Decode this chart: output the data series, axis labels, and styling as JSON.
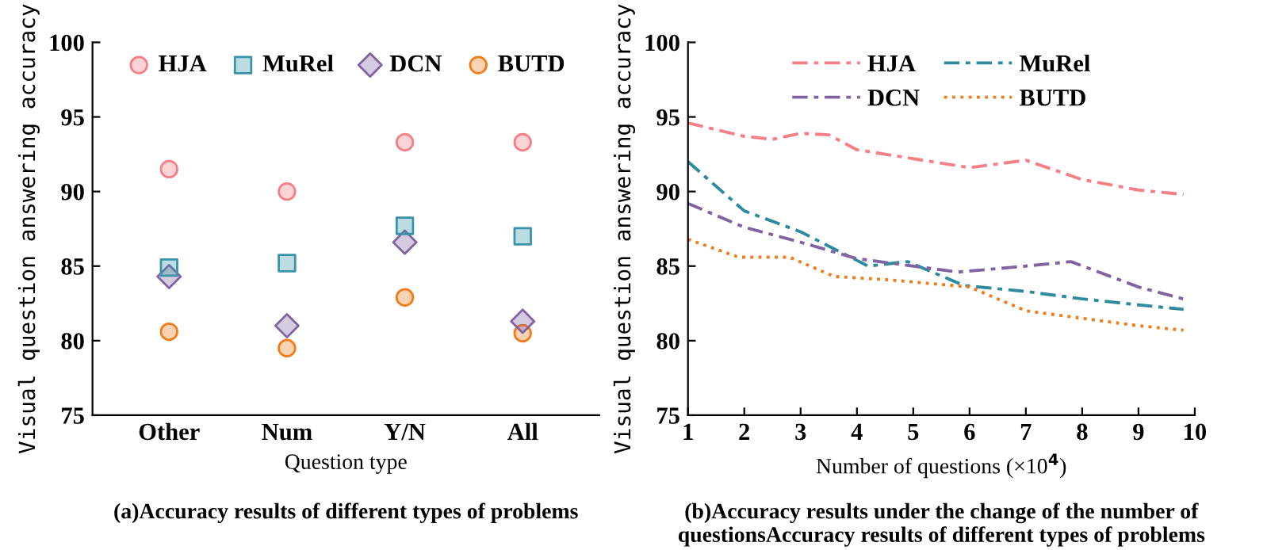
{
  "chart_data": [
    {
      "type": "scatter",
      "categories": [
        "Other",
        "Num",
        "Y/N",
        "All"
      ],
      "xlabel": "Question type",
      "ylabel": "Visual question answering accuracy",
      "ylim": [
        75,
        100
      ],
      "yticks": [
        75,
        80,
        85,
        90,
        95,
        100
      ],
      "legend": "top",
      "grid": false,
      "annotations": [
        "(a)Accuracy results of different types of problems"
      ],
      "series": [
        {
          "name": "HJA",
          "color": "#f47f86",
          "marker": "circle",
          "values": [
            91.5,
            90.0,
            93.3,
            93.3
          ]
        },
        {
          "name": "MuRel",
          "color": "#3a93a8",
          "marker": "square",
          "values": [
            84.9,
            85.2,
            87.7,
            87.0
          ]
        },
        {
          "name": "DCN",
          "color": "#8064a2",
          "marker": "diamond",
          "values": [
            84.3,
            81.0,
            86.6,
            81.3
          ]
        },
        {
          "name": "BUTD",
          "color": "#f07c1a",
          "marker": "circle",
          "values": [
            80.6,
            79.5,
            82.9,
            80.5
          ]
        }
      ]
    },
    {
      "type": "line",
      "xlabel": "Number of questions (×10$^{4}$)",
      "ylabel": "Visual question answering accuracy",
      "xlim": [
        1,
        10
      ],
      "xticks": [
        1,
        2,
        3,
        4,
        5,
        6,
        7,
        8,
        9,
        10
      ],
      "ylim": [
        75,
        100
      ],
      "yticks": [
        75,
        80,
        85,
        90,
        95,
        100
      ],
      "legend": "top",
      "grid": false,
      "marker": "none",
      "annotations": [
        "(b)Accuracy results under the change of the number of questionsAccuracy results of different types of problems"
      ],
      "series": [
        {
          "name": "HJA",
          "color": "#f47f86",
          "line_style": "dashed",
          "x": [
            1,
            2,
            2.5,
            3,
            3.5,
            4,
            5,
            6,
            7,
            8,
            9,
            9.8
          ],
          "values": [
            94.6,
            93.7,
            93.5,
            93.9,
            93.8,
            92.8,
            92.2,
            91.6,
            92.1,
            90.8,
            90.1,
            89.8
          ]
        },
        {
          "name": "MuRel",
          "color": "#2e8b9e",
          "line_style": "dashed",
          "x": [
            1,
            2,
            3,
            4.2,
            4.9,
            5.9,
            7,
            8,
            9,
            9.8
          ],
          "values": [
            92.0,
            88.7,
            87.3,
            85.0,
            85.3,
            83.7,
            83.3,
            82.8,
            82.4,
            82.1
          ]
        },
        {
          "name": "DCN",
          "color": "#8064a2",
          "line_style": "dashed",
          "x": [
            1,
            2,
            3,
            4,
            5,
            5.8,
            7,
            7.8,
            9,
            9.8
          ],
          "values": [
            89.2,
            87.6,
            86.6,
            85.5,
            85.0,
            84.6,
            85.0,
            85.3,
            83.6,
            82.8
          ]
        },
        {
          "name": "BUTD",
          "color": "#f07c1a",
          "line_style": "dotted",
          "x": [
            1,
            1.9,
            2.8,
            3.6,
            4.5,
            6,
            7,
            8,
            9,
            9.8
          ],
          "values": [
            86.8,
            85.6,
            85.6,
            84.3,
            84.1,
            83.6,
            82.0,
            81.5,
            81.0,
            80.7
          ]
        }
      ]
    }
  ]
}
